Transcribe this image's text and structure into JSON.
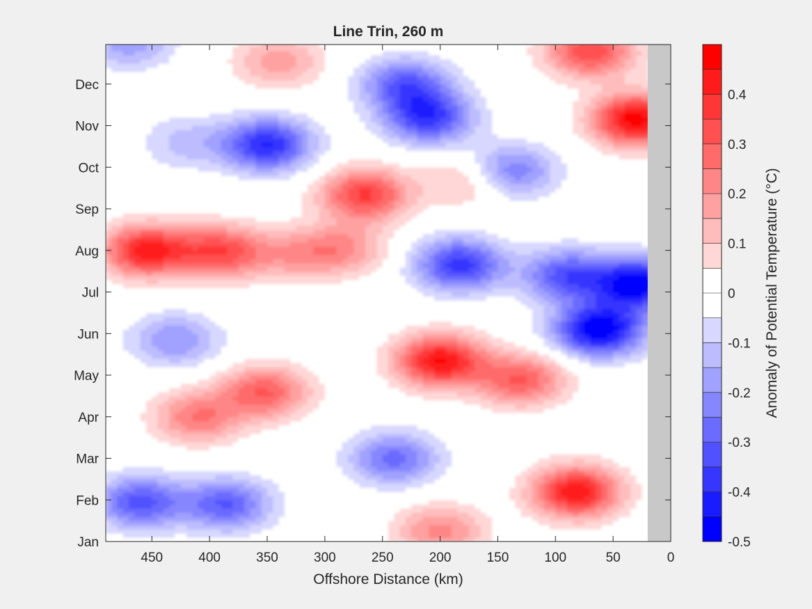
{
  "chart_data": {
    "type": "heatmap",
    "title": "Line Trin, 260 m",
    "xlabel": "Offshore Distance (km)",
    "ylabel": "",
    "colorbar_label": "Anomaly of Potential Temperature (°C)",
    "x_reversed": true,
    "xlim": [
      490,
      0
    ],
    "x_ticks": [
      450,
      400,
      350,
      300,
      250,
      200,
      150,
      100,
      50,
      0
    ],
    "x_tick_labels": [
      "450",
      "400",
      "350",
      "300",
      "250",
      "200",
      "150",
      "100",
      "50",
      "0"
    ],
    "y_ticks": [
      1,
      2,
      3,
      4,
      5,
      6,
      7,
      8,
      9,
      10,
      11,
      12
    ],
    "y_tick_labels": [
      "Jan",
      "Feb",
      "Mar",
      "Apr",
      "May",
      "Jun",
      "Jul",
      "Aug",
      "Sep",
      "Oct",
      "Nov",
      "Dec"
    ],
    "ylim": [
      1,
      12.95
    ],
    "no_data_x_range": [
      0,
      20
    ],
    "colorbar_ticks": [
      0.4,
      0.3,
      0.2,
      0.1,
      0,
      -0.1,
      -0.2,
      -0.3,
      -0.4,
      -0.5
    ],
    "colorbar_tick_labels": [
      "0.4",
      "0.3",
      "0.2",
      "0.1",
      "0",
      "-0.1",
      "-0.2",
      "-0.3",
      "-0.4",
      "-0.5"
    ],
    "clim": [
      -0.5,
      0.5
    ],
    "levels": [
      -0.5,
      -0.45,
      -0.4,
      -0.35,
      -0.3,
      -0.25,
      -0.2,
      -0.15,
      -0.1,
      -0.05,
      0.05,
      0.1,
      0.15,
      0.2,
      0.25,
      0.3,
      0.35,
      0.4,
      0.45,
      0.5
    ],
    "colors": {
      "positive_max": "#ff0000",
      "negative_max": "#0000ff",
      "zero": "#ffffff",
      "no_data": "#c8c8c8",
      "contour": "#000000"
    },
    "anomaly_centers": [
      {
        "x": 455,
        "y": 8.0,
        "value": 0.42
      },
      {
        "x": 390,
        "y": 7.98,
        "value": 0.33
      },
      {
        "x": 328,
        "y": 7.9,
        "value": 0.15
      },
      {
        "x": 265,
        "y": 9.35,
        "value": 0.36
      },
      {
        "x": 285,
        "y": 8.05,
        "value": 0.2
      },
      {
        "x": 340,
        "y": 12.55,
        "value": 0.18
      },
      {
        "x": 172,
        "y": 9.7,
        "value": 0.16
      },
      {
        "x": 30,
        "y": 11.15,
        "value": 0.48
      },
      {
        "x": 70,
        "y": 12.8,
        "value": 0.35
      },
      {
        "x": 200,
        "y": 5.35,
        "value": 0.45
      },
      {
        "x": 130,
        "y": 4.9,
        "value": 0.3
      },
      {
        "x": 352,
        "y": 4.6,
        "value": 0.3
      },
      {
        "x": 410,
        "y": 4.0,
        "value": 0.25
      },
      {
        "x": 82,
        "y": 2.2,
        "value": 0.44
      },
      {
        "x": 200,
        "y": 1.25,
        "value": 0.22
      },
      {
        "x": 350,
        "y": 10.55,
        "value": -0.4
      },
      {
        "x": 230,
        "y": 12.0,
        "value": -0.3
      },
      {
        "x": 210,
        "y": 11.2,
        "value": -0.36
      },
      {
        "x": 140,
        "y": 9.9,
        "value": -0.28
      },
      {
        "x": 183,
        "y": 7.66,
        "value": -0.38
      },
      {
        "x": 420,
        "y": 10.6,
        "value": -0.12
      },
      {
        "x": 62,
        "y": 6.1,
        "value": -0.5
      },
      {
        "x": 28,
        "y": 7.2,
        "value": -0.48
      },
      {
        "x": 90,
        "y": 7.4,
        "value": -0.32
      },
      {
        "x": 430,
        "y": 5.85,
        "value": -0.2
      },
      {
        "x": 460,
        "y": 1.95,
        "value": -0.32
      },
      {
        "x": 385,
        "y": 1.9,
        "value": -0.3
      },
      {
        "x": 240,
        "y": 3.0,
        "value": -0.27
      },
      {
        "x": 470,
        "y": 13.0,
        "value": -0.18
      }
    ]
  }
}
